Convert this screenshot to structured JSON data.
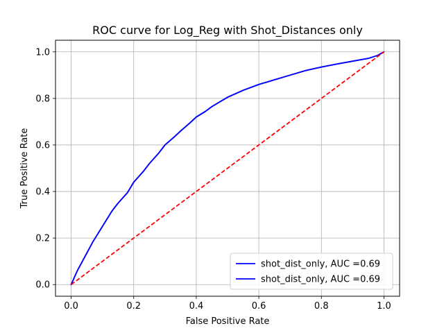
{
  "chart_data": {
    "type": "line",
    "title": "ROC curve for Log_Reg with Shot_Distances only",
    "xlabel": "False Positive Rate",
    "ylabel": "True Positive Rate",
    "xlim": [
      -0.05,
      1.05
    ],
    "ylim": [
      -0.05,
      1.05
    ],
    "xticks": [
      "0.0",
      "0.2",
      "0.4",
      "0.6",
      "0.8",
      "1.0"
    ],
    "yticks": [
      "0.0",
      "0.2",
      "0.4",
      "0.6",
      "0.8",
      "1.0"
    ],
    "grid": true,
    "legend_position": "lower-right",
    "series": [
      {
        "name": "shot_dist_only, AUC =0.69",
        "color": "#0000ff",
        "style": "solid",
        "x": [
          0.0,
          0.01,
          0.02,
          0.03,
          0.05,
          0.07,
          0.1,
          0.13,
          0.15,
          0.18,
          0.2,
          0.23,
          0.25,
          0.28,
          0.3,
          0.33,
          0.35,
          0.38,
          0.4,
          0.43,
          0.45,
          0.5,
          0.55,
          0.6,
          0.65,
          0.7,
          0.75,
          0.8,
          0.85,
          0.9,
          0.95,
          0.98,
          1.0
        ],
        "y": [
          0.0,
          0.03,
          0.06,
          0.085,
          0.135,
          0.185,
          0.25,
          0.315,
          0.35,
          0.395,
          0.44,
          0.485,
          0.52,
          0.565,
          0.6,
          0.635,
          0.66,
          0.695,
          0.72,
          0.745,
          0.765,
          0.805,
          0.835,
          0.86,
          0.88,
          0.9,
          0.92,
          0.935,
          0.948,
          0.96,
          0.972,
          0.985,
          1.0
        ]
      },
      {
        "name": "shot_dist_only, AUC =0.69",
        "color": "#0000ff",
        "style": "solid",
        "x": [
          0.0,
          0.01,
          0.02,
          0.03,
          0.05,
          0.07,
          0.1,
          0.13,
          0.15,
          0.18,
          0.2,
          0.23,
          0.25,
          0.28,
          0.3,
          0.33,
          0.35,
          0.38,
          0.4,
          0.43,
          0.45,
          0.5,
          0.55,
          0.6,
          0.65,
          0.7,
          0.75,
          0.8,
          0.85,
          0.9,
          0.95,
          0.98,
          1.0
        ],
        "y": [
          0.0,
          0.03,
          0.06,
          0.085,
          0.135,
          0.185,
          0.25,
          0.315,
          0.35,
          0.395,
          0.44,
          0.485,
          0.52,
          0.565,
          0.6,
          0.635,
          0.66,
          0.695,
          0.72,
          0.745,
          0.765,
          0.805,
          0.835,
          0.86,
          0.88,
          0.9,
          0.92,
          0.935,
          0.948,
          0.96,
          0.972,
          0.985,
          1.0
        ]
      },
      {
        "color": "#ff0000",
        "style": "dashed",
        "x": [
          0.0,
          1.0
        ],
        "y": [
          0.0,
          1.0
        ]
      }
    ]
  }
}
